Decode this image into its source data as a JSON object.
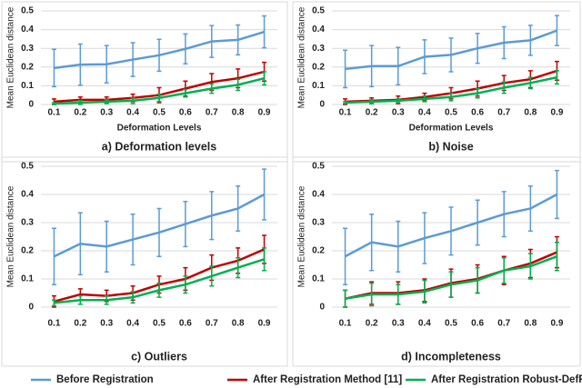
{
  "chart_data": [
    {
      "type": "line",
      "caption": "a) Deformation levels",
      "xlabel": "Deformation Levels",
      "ylabel": "Mean Euclidean distance",
      "x": [
        0.1,
        0.2,
        0.3,
        0.4,
        0.5,
        0.6,
        0.7,
        0.8,
        0.9
      ],
      "xlim": [
        0.05,
        0.95
      ],
      "xticks": [
        0.1,
        0.2,
        0.3,
        0.4,
        0.5,
        0.6,
        0.7,
        0.8,
        0.9
      ],
      "ylim": [
        0,
        0.5
      ],
      "yticks": [
        0,
        0.1,
        0.2,
        0.3,
        0.4,
        0.5
      ],
      "grid": true,
      "series": [
        {
          "color": "#5b9bd5",
          "values": [
            0.195,
            0.213,
            0.215,
            0.24,
            0.263,
            0.297,
            0.337,
            0.345,
            0.388
          ],
          "errors": [
            0.1,
            0.11,
            0.1,
            0.09,
            0.085,
            0.08,
            0.085,
            0.08,
            0.085
          ]
        },
        {
          "color": "#c00000",
          "values": [
            0.015,
            0.025,
            0.025,
            0.035,
            0.05,
            0.085,
            0.12,
            0.14,
            0.175
          ],
          "errors": [
            0.015,
            0.015,
            0.015,
            0.02,
            0.04,
            0.04,
            0.045,
            0.05,
            0.05
          ]
        },
        {
          "color": "#00b050",
          "values": [
            0.005,
            0.01,
            0.015,
            0.02,
            0.035,
            0.06,
            0.085,
            0.105,
            0.14
          ],
          "errors": [
            0.005,
            0.01,
            0.01,
            0.015,
            0.02,
            0.02,
            0.025,
            0.03,
            0.035
          ]
        }
      ]
    },
    {
      "type": "line",
      "caption": "b) Noise",
      "xlabel": "Deformation Levels",
      "ylabel": "Mean Euclidean distance",
      "x": [
        0.1,
        0.2,
        0.3,
        0.4,
        0.5,
        0.6,
        0.7,
        0.8,
        0.9
      ],
      "xlim": [
        0.05,
        0.95
      ],
      "xticks": [
        0.1,
        0.2,
        0.3,
        0.4,
        0.5,
        0.6,
        0.7,
        0.8,
        0.9
      ],
      "ylim": [
        0,
        0.5
      ],
      "yticks": [
        0,
        0.1,
        0.2,
        0.3,
        0.4,
        0.5
      ],
      "grid": true,
      "series": [
        {
          "color": "#5b9bd5",
          "values": [
            0.19,
            0.205,
            0.205,
            0.255,
            0.265,
            0.3,
            0.33,
            0.343,
            0.395
          ],
          "errors": [
            0.1,
            0.11,
            0.1,
            0.09,
            0.09,
            0.08,
            0.085,
            0.08,
            0.08
          ]
        },
        {
          "color": "#c00000",
          "values": [
            0.015,
            0.02,
            0.025,
            0.04,
            0.06,
            0.085,
            0.115,
            0.135,
            0.18
          ],
          "errors": [
            0.015,
            0.015,
            0.02,
            0.02,
            0.03,
            0.04,
            0.04,
            0.045,
            0.05
          ]
        },
        {
          "color": "#00b050",
          "values": [
            0.01,
            0.015,
            0.02,
            0.03,
            0.04,
            0.06,
            0.09,
            0.115,
            0.145
          ],
          "errors": [
            0.005,
            0.01,
            0.01,
            0.015,
            0.02,
            0.025,
            0.03,
            0.03,
            0.035
          ]
        }
      ]
    },
    {
      "type": "line",
      "caption": "c) Outliers",
      "ylabel": "Mean Euclidean distance",
      "x": [
        0.1,
        0.2,
        0.3,
        0.4,
        0.5,
        0.6,
        0.7,
        0.8,
        0.9
      ],
      "xlim": [
        0.05,
        0.95
      ],
      "xticks": [
        0.1,
        0.2,
        0.3,
        0.4,
        0.5,
        0.6,
        0.7,
        0.8,
        0.9
      ],
      "ylim": [
        0,
        0.5
      ],
      "yticks": [
        0,
        0.1,
        0.2,
        0.3,
        0.4,
        0.5
      ],
      "grid": true,
      "series": [
        {
          "color": "#5b9bd5",
          "values": [
            0.18,
            0.225,
            0.215,
            0.24,
            0.265,
            0.295,
            0.325,
            0.35,
            0.4
          ],
          "errors": [
            0.1,
            0.11,
            0.09,
            0.09,
            0.085,
            0.08,
            0.085,
            0.08,
            0.09
          ]
        },
        {
          "color": "#c00000",
          "values": [
            0.02,
            0.045,
            0.04,
            0.05,
            0.08,
            0.1,
            0.14,
            0.165,
            0.205
          ],
          "errors": [
            0.02,
            0.02,
            0.02,
            0.025,
            0.03,
            0.04,
            0.045,
            0.045,
            0.05
          ]
        },
        {
          "color": "#00b050",
          "values": [
            0.015,
            0.025,
            0.025,
            0.035,
            0.06,
            0.08,
            0.11,
            0.14,
            0.17
          ],
          "errors": [
            0.01,
            0.015,
            0.015,
            0.02,
            0.025,
            0.03,
            0.035,
            0.035,
            0.04
          ]
        }
      ]
    },
    {
      "type": "line",
      "caption": "d) Incompleteness",
      "ylabel": "Mean Euclidean distance",
      "x": [
        0.1,
        0.2,
        0.3,
        0.4,
        0.5,
        0.6,
        0.7,
        0.8,
        0.9
      ],
      "xlim": [
        0.05,
        0.95
      ],
      "xticks": [
        0.1,
        0.2,
        0.3,
        0.4,
        0.5,
        0.6,
        0.7,
        0.8,
        0.9
      ],
      "ylim": [
        0,
        0.5
      ],
      "yticks": [
        0,
        0.1,
        0.2,
        0.3,
        0.4,
        0.5
      ],
      "grid": true,
      "series": [
        {
          "color": "#5b9bd5",
          "values": [
            0.18,
            0.23,
            0.215,
            0.245,
            0.27,
            0.3,
            0.33,
            0.35,
            0.4
          ],
          "errors": [
            0.1,
            0.1,
            0.09,
            0.09,
            0.085,
            0.08,
            0.08,
            0.08,
            0.085
          ]
        },
        {
          "color": "#c00000",
          "values": [
            0.03,
            0.05,
            0.05,
            0.06,
            0.085,
            0.1,
            0.13,
            0.155,
            0.195
          ],
          "errors": [
            0.03,
            0.04,
            0.04,
            0.04,
            0.05,
            0.05,
            0.05,
            0.05,
            0.055
          ]
        },
        {
          "color": "#00b050",
          "values": [
            0.03,
            0.045,
            0.045,
            0.055,
            0.08,
            0.095,
            0.13,
            0.145,
            0.18
          ],
          "errors": [
            0.03,
            0.04,
            0.035,
            0.04,
            0.045,
            0.045,
            0.045,
            0.045,
            0.05
          ]
        }
      ]
    }
  ],
  "legend": [
    {
      "name": "Before Registration",
      "color": "#5b9bd5"
    },
    {
      "name": "After Registration Method [11]",
      "color": "#c00000"
    },
    {
      "name": "After Registration Robust-DefReg",
      "color": "#00b050"
    }
  ]
}
